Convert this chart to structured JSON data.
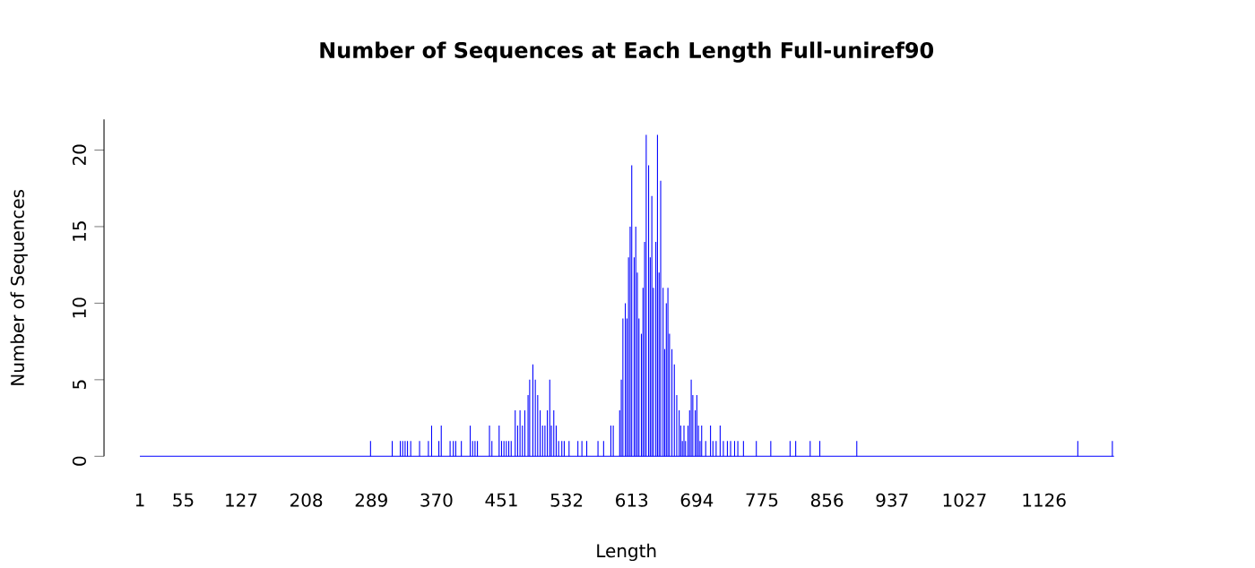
{
  "chart_data": {
    "type": "bar",
    "title": "Number of Sequences at Each Length  Full-uniref90",
    "xlabel": "Length",
    "ylabel": "Number of Sequences",
    "color": "#0000ff",
    "x": [
      288,
      315,
      325,
      328,
      331,
      334,
      338,
      349,
      360,
      364,
      373,
      376,
      387,
      391,
      394,
      401,
      412,
      415,
      418,
      421,
      436,
      439,
      448,
      451,
      454,
      457,
      460,
      463,
      468,
      471,
      474,
      477,
      480,
      484,
      486,
      490,
      493,
      496,
      499,
      502,
      505,
      508,
      511,
      513,
      516,
      519,
      522,
      526,
      529,
      535,
      546,
      551,
      557,
      571,
      578,
      587,
      590,
      598,
      600,
      602,
      605,
      607,
      609,
      611,
      613,
      616,
      618,
      620,
      622,
      625,
      627,
      629,
      631,
      634,
      636,
      638,
      640,
      643,
      645,
      647,
      649,
      652,
      654,
      656,
      658,
      660,
      663,
      666,
      669,
      672,
      674,
      676,
      678,
      680,
      683,
      685,
      687,
      689,
      692,
      694,
      696,
      698,
      700,
      705,
      711,
      714,
      718,
      723,
      727,
      732,
      736,
      741,
      745,
      752,
      768,
      786,
      810,
      817,
      835,
      847,
      893,
      1168,
      1211
    ],
    "values": [
      1,
      1,
      1,
      1,
      1,
      1,
      1,
      1,
      1,
      2,
      1,
      2,
      1,
      1,
      1,
      1,
      2,
      1,
      1,
      1,
      2,
      1,
      2,
      1,
      1,
      1,
      1,
      1,
      3,
      2,
      3,
      2,
      3,
      4,
      5,
      6,
      5,
      4,
      3,
      2,
      2,
      3,
      5,
      2,
      3,
      2,
      1,
      1,
      1,
      1,
      1,
      1,
      1,
      1,
      1,
      2,
      2,
      3,
      5,
      9,
      10,
      9,
      13,
      15,
      19,
      13,
      15,
      12,
      9,
      8,
      11,
      14,
      21,
      19,
      13,
      17,
      11,
      14,
      21,
      12,
      18,
      11,
      7,
      10,
      11,
      8,
      7,
      6,
      4,
      3,
      2,
      1,
      2,
      1,
      2,
      3,
      5,
      4,
      3,
      4,
      2,
      1,
      2,
      1,
      2,
      1,
      1,
      2,
      1,
      1,
      1,
      1,
      1,
      1,
      1,
      1,
      1,
      1,
      1,
      1,
      1,
      1,
      1
    ],
    "xlim": [
      1,
      1213
    ],
    "xticks": [
      1,
      55,
      127,
      208,
      289,
      370,
      451,
      532,
      613,
      694,
      775,
      856,
      937,
      1027,
      1126
    ],
    "ylim": [
      0,
      22
    ],
    "yticks": [
      0,
      5,
      10,
      15,
      20
    ]
  }
}
